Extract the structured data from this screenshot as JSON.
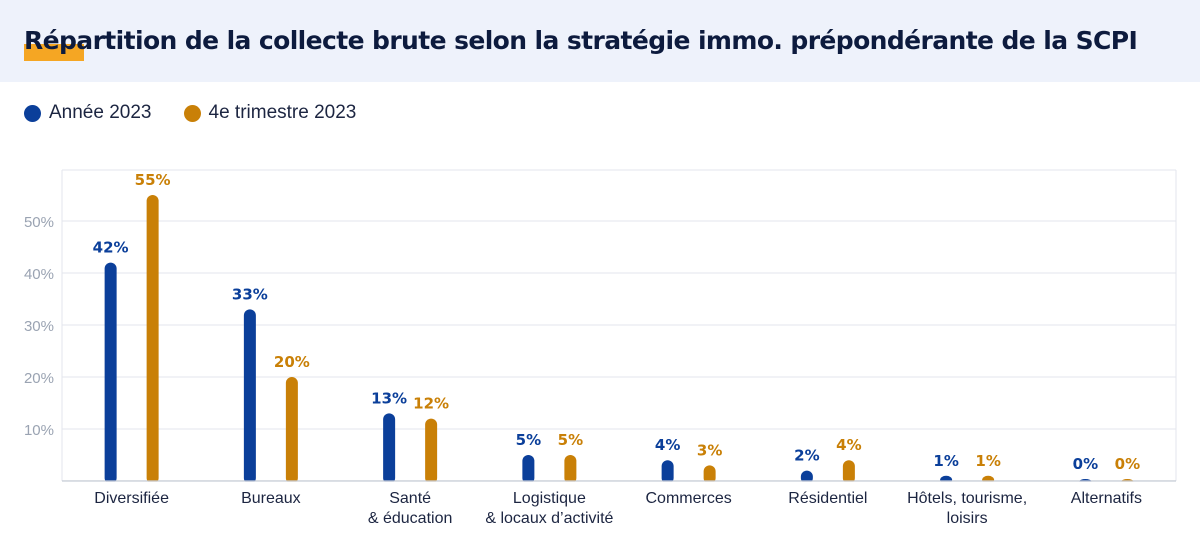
{
  "header": {
    "title": "Répartition de la collecte brute selon la stratégie immo. prépondérante de la SCPI"
  },
  "colors": {
    "series_1": "#0b3f9a",
    "series_2": "#c98007",
    "accent": "#f5a623",
    "grid": "#e3e6ec",
    "tick_text": "#9aa3b2"
  },
  "chart_data": {
    "type": "bar",
    "categories": [
      "Diversifiée",
      "Bureaux",
      "Santé\n& éducation",
      "Logistique\n& locaux d’activité",
      "Commerces",
      "Résidentiel",
      "Hôtels, tourisme,\nloisirs",
      "Alternatifs"
    ],
    "series": [
      {
        "name": "Année 2023",
        "values": [
          42,
          33,
          13,
          5,
          4,
          2,
          1,
          0
        ],
        "labels": [
          "42%",
          "33%",
          "13%",
          "5%",
          "4%",
          "2%",
          "1%",
          "0%"
        ]
      },
      {
        "name": "4e trimestre 2023",
        "values": [
          55,
          20,
          12,
          5,
          3,
          4,
          1,
          0
        ],
        "labels": [
          "55%",
          "20%",
          "12%",
          "5%",
          "3%",
          "4%",
          "1%",
          "0%"
        ]
      }
    ],
    "y_ticks": [
      10,
      20,
      30,
      40,
      50
    ],
    "y_tick_labels": [
      "10%",
      "20%",
      "30%",
      "40%",
      "50%"
    ],
    "ylim": [
      0,
      60
    ],
    "grid": true,
    "legend_position": "top-left"
  }
}
